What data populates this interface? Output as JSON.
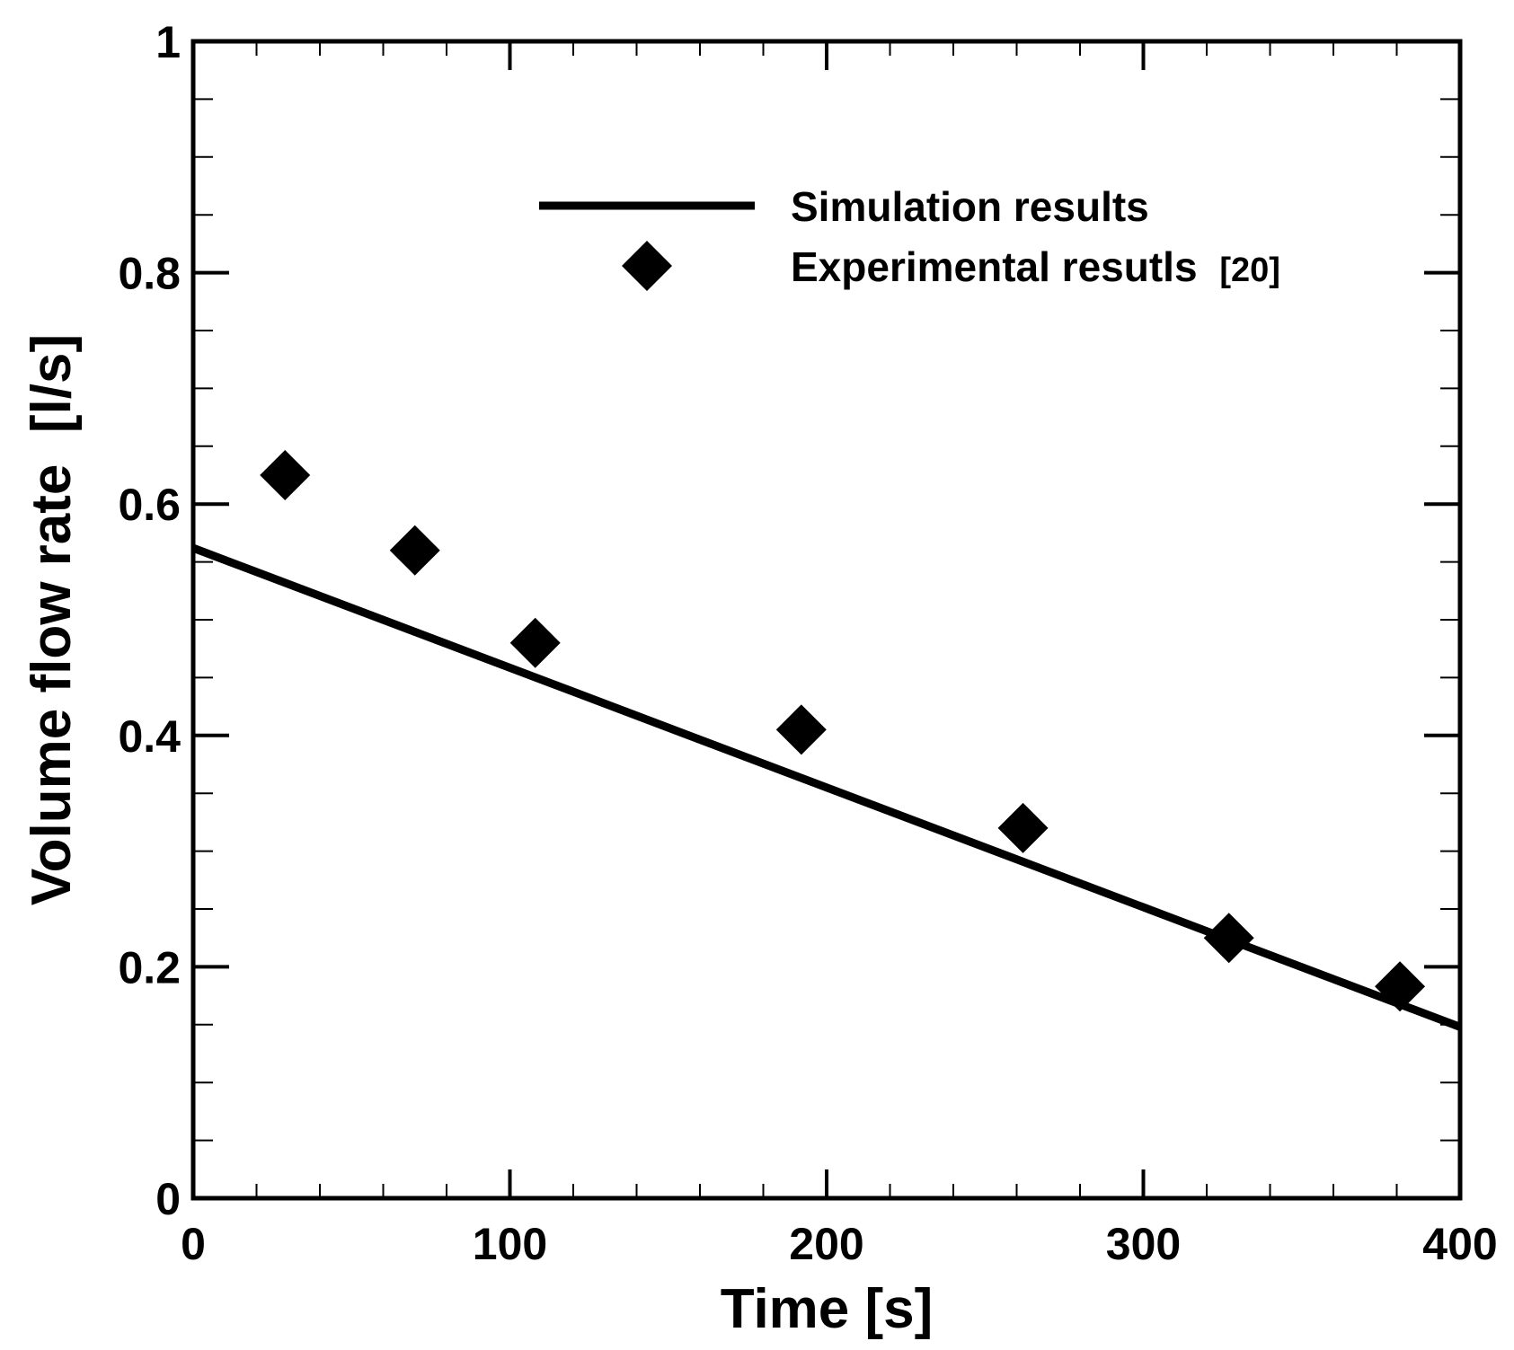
{
  "chart_data": {
    "type": "line",
    "title": "",
    "xlabel": "Time [s]",
    "ylabel": "Volume flow rate  [l/s]",
    "xlim": [
      0,
      400
    ],
    "ylim": [
      0,
      1
    ],
    "xticks": [
      0,
      100,
      200,
      300,
      400
    ],
    "xtick_labels": [
      "0",
      "100",
      "200",
      "300",
      "400"
    ],
    "yticks": [
      0,
      0.2,
      0.4,
      0.6,
      0.8,
      1
    ],
    "ytick_labels": [
      "0",
      "0.2",
      "0.4",
      "0.6",
      "0.8",
      "1"
    ],
    "grid": false,
    "legend_position": "top-right",
    "series": [
      {
        "name": "Simulation results",
        "style": "line",
        "color": "#000000",
        "x": [
          0,
          400
        ],
        "y": [
          0.562,
          0.148
        ]
      },
      {
        "name": "Experimental resutls [20]",
        "style": "diamond",
        "color": "#000000",
        "x": [
          29,
          70,
          108,
          192,
          262,
          327,
          381
        ],
        "y": [
          0.625,
          0.56,
          0.48,
          0.405,
          0.32,
          0.225,
          0.183
        ]
      }
    ],
    "legend": {
      "line_label": "Simulation results",
      "marker_label_main": "Experimental resutls",
      "marker_label_ref": "[20]"
    }
  }
}
